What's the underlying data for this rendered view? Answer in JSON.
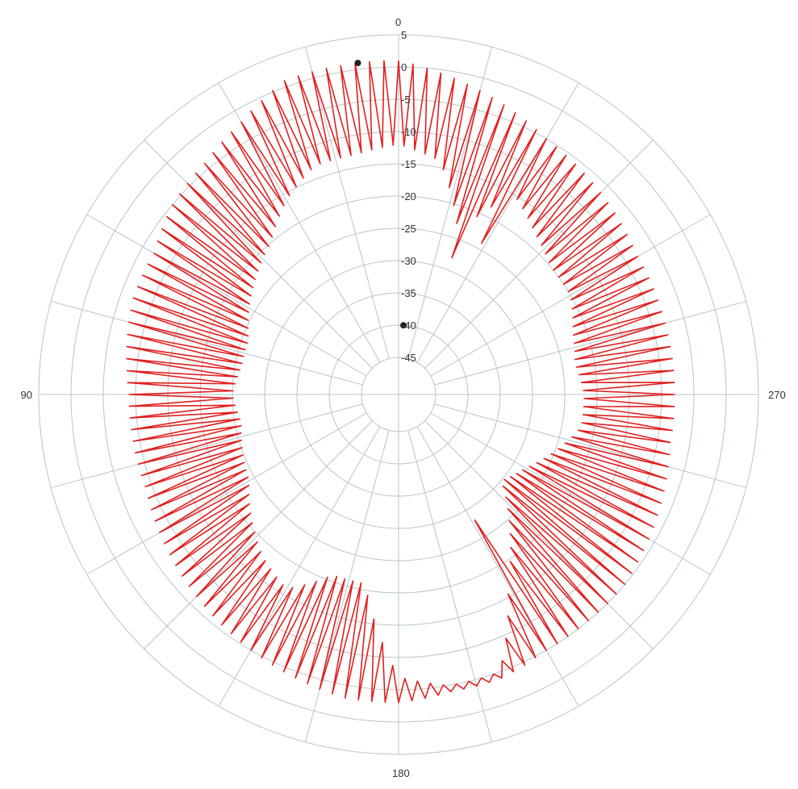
{
  "chart_data": {
    "type": "polar-line",
    "angle_labels": [
      {
        "angle": 0,
        "label": "0"
      },
      {
        "angle": 90,
        "label": "90"
      },
      {
        "angle": 180,
        "label": "180"
      },
      {
        "angle": 270,
        "label": "270"
      }
    ],
    "radial_ticks": [
      "5",
      "0",
      "-5",
      "-10",
      "-15",
      "-20",
      "-25",
      "-30",
      "-35",
      "-40",
      "-45"
    ],
    "radial_range": [
      -45,
      5
    ],
    "spoke_step_deg": 15,
    "angle_direction": "counterclockwise from top",
    "grid": true,
    "series": [
      {
        "color": "#e02020",
        "ripple_step_deg": 2.5,
        "upper_envelope": [
          [
            0,
            1
          ],
          [
            10,
            1
          ],
          [
            20,
            1
          ],
          [
            30,
            -2
          ],
          [
            40,
            -4
          ],
          [
            50,
            -5
          ],
          [
            60,
            -7
          ],
          [
            70,
            -7
          ],
          [
            80,
            -8
          ],
          [
            90,
            -9
          ],
          [
            100,
            -9
          ],
          [
            110,
            -9
          ],
          [
            120,
            -8
          ],
          [
            130,
            -7
          ],
          [
            140,
            -6
          ],
          [
            150,
            -5
          ],
          [
            160,
            -4
          ],
          [
            170,
            -3
          ],
          [
            180,
            -3
          ],
          [
            190,
            -4
          ],
          [
            200,
            -4
          ],
          [
            210,
            -5
          ],
          [
            220,
            -5
          ],
          [
            230,
            -5
          ],
          [
            240,
            -6
          ],
          [
            250,
            -7
          ],
          [
            260,
            -8
          ],
          [
            270,
            -8
          ],
          [
            280,
            -8
          ],
          [
            290,
            -8
          ],
          [
            300,
            -8
          ],
          [
            310,
            -7
          ],
          [
            320,
            -6
          ],
          [
            330,
            -5
          ],
          [
            340,
            -3
          ],
          [
            350,
            -1
          ],
          [
            360,
            1
          ]
        ],
        "lower_envelope": [
          [
            0,
            -12
          ],
          [
            10,
            -13
          ],
          [
            20,
            -13
          ],
          [
            30,
            -16
          ],
          [
            40,
            -20
          ],
          [
            50,
            -22
          ],
          [
            60,
            -24
          ],
          [
            70,
            -26
          ],
          [
            80,
            -26
          ],
          [
            90,
            -25
          ],
          [
            100,
            -26
          ],
          [
            110,
            -25
          ],
          [
            120,
            -24
          ],
          [
            130,
            -21
          ],
          [
            140,
            -18
          ],
          [
            150,
            -16
          ],
          [
            160,
            -21
          ],
          [
            170,
            -21
          ],
          [
            180,
            -7
          ],
          [
            190,
            -5
          ],
          [
            200,
            -5
          ],
          [
            210,
            -17
          ],
          [
            220,
            -24
          ],
          [
            230,
            -30
          ],
          [
            240,
            -28
          ],
          [
            250,
            -25
          ],
          [
            260,
            -22
          ],
          [
            270,
            -22
          ],
          [
            280,
            -23
          ],
          [
            290,
            -22
          ],
          [
            300,
            -20
          ],
          [
            310,
            -20
          ],
          [
            320,
            -18
          ],
          [
            330,
            -15
          ],
          [
            340,
            -24
          ],
          [
            350,
            -14
          ],
          [
            360,
            -12
          ]
        ],
        "spikes": [
          {
            "angle": 345,
            "value": -38
          },
          {
            "angle": 338,
            "value": -28
          },
          {
            "angle": 332,
            "value": -24
          },
          {
            "angle": 210,
            "value": -30
          },
          {
            "angle": 212,
            "value": -28
          }
        ],
        "markers": [
          {
            "angle": 7,
            "value": 1
          },
          {
            "angle": 356,
            "value": -40
          }
        ]
      }
    ]
  }
}
